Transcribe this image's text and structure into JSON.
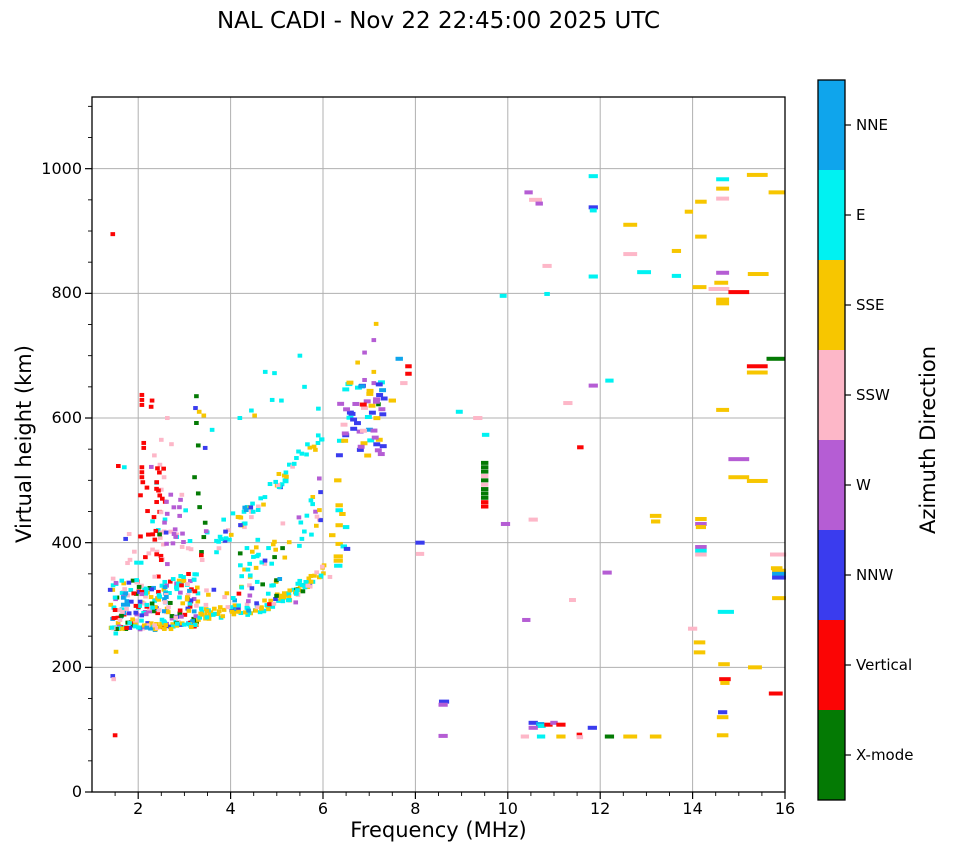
{
  "title": "NAL CADI - Nov 22 22:45:00 2025 UTC",
  "chart_data": {
    "type": "scatter",
    "title": "NAL CADI - Nov 22 22:45:00 2025 UTC",
    "xlabel": "Frequency (MHz)",
    "ylabel": "Virtual height (km)",
    "xlim": [
      1,
      16
    ],
    "ylim": [
      0,
      1115
    ],
    "xticks": [
      2,
      4,
      6,
      8,
      10,
      12,
      14,
      16
    ],
    "yticks": [
      0,
      200,
      400,
      600,
      800,
      1000
    ],
    "xticks_minor_step": 0.5,
    "yticks_minor_step": 50,
    "grid": true,
    "grid_color": "#b0b0b0",
    "frame_color": "#000000",
    "colorbar": {
      "label": "Azimuth Direction",
      "entries": [
        {
          "label": "NNE",
          "color": "#0fa5ec"
        },
        {
          "label": "E",
          "color": "#00f2f2"
        },
        {
          "label": "SSE",
          "color": "#f7c600"
        },
        {
          "label": "SSW",
          "color": "#fdb7c8"
        },
        {
          "label": "W",
          "color": "#b55dd4"
        },
        {
          "label": "NNW",
          "color": "#3a3cee"
        },
        {
          "label": "Vertical",
          "color": "#fb0505"
        },
        {
          "label": "X-mode",
          "color": "#047a04"
        }
      ]
    },
    "color_key": [
      "NNE",
      "E",
      "SSE",
      "SSW",
      "W",
      "NNW",
      "Vertical",
      "X-mode"
    ],
    "points_format": "[freq_MHz, height_km, color_index, dash_width_MHz?]",
    "points": [
      [
        1.45,
        895,
        6
      ],
      [
        1.45,
        186,
        5
      ],
      [
        1.47,
        181,
        3
      ],
      [
        1.5,
        91,
        6
      ],
      [
        1.52,
        225,
        2
      ],
      [
        1.57,
        523,
        6
      ],
      [
        1.7,
        521,
        1
      ],
      [
        2.08,
        637,
        6
      ],
      [
        2.08,
        629,
        6
      ],
      [
        2.08,
        621,
        6
      ],
      [
        2.3,
        628,
        6
      ],
      [
        2.28,
        618,
        6
      ],
      [
        2.12,
        560,
        6
      ],
      [
        2.12,
        552,
        6
      ],
      [
        2.08,
        521,
        6
      ],
      [
        2.08,
        513,
        6
      ],
      [
        2.08,
        505,
        6
      ],
      [
        2.1,
        497,
        6
      ],
      [
        2.05,
        476,
        6
      ],
      [
        2.05,
        410,
        6
      ],
      [
        2.63,
        600,
        3
      ],
      [
        2.5,
        565,
        3
      ],
      [
        2.47,
        525,
        3
      ],
      [
        2.56,
        505,
        3
      ],
      [
        2.4,
        496,
        3
      ],
      [
        2.5,
        485,
        3
      ],
      [
        2.35,
        540,
        3
      ],
      [
        2.72,
        558,
        3
      ],
      [
        3.26,
        635,
        7
      ],
      [
        3.26,
        592,
        7
      ],
      [
        3.3,
        556,
        7
      ],
      [
        3.22,
        505,
        7
      ],
      [
        3.3,
        479,
        7
      ],
      [
        3.33,
        457,
        7
      ],
      [
        3.42,
        409,
        7
      ],
      [
        3.37,
        385,
        7
      ],
      [
        3.45,
        432,
        7
      ],
      [
        3.24,
        616,
        5
      ],
      [
        3.45,
        552,
        5
      ],
      [
        3.6,
        581,
        1
      ],
      [
        3.32,
        610,
        2
      ],
      [
        3.42,
        604,
        2
      ],
      [
        5.5,
        700,
        1
      ],
      [
        4.95,
        672,
        1
      ],
      [
        5.6,
        650,
        1
      ],
      [
        4.9,
        629,
        1
      ],
      [
        5.1,
        628,
        1
      ],
      [
        4.45,
        612,
        1
      ],
      [
        4.52,
        604,
        2
      ],
      [
        4.2,
        600,
        1
      ],
      [
        4.75,
        674,
        1
      ],
      [
        5.9,
        615,
        1
      ],
      [
        3.85,
        437,
        1
      ],
      [
        3.95,
        420,
        3
      ],
      [
        4.05,
        447,
        1
      ],
      [
        4.45,
        441,
        3
      ],
      [
        4.3,
        425,
        3
      ],
      [
        4.6,
        458,
        3
      ],
      [
        6.32,
        500,
        2,
        0.16
      ],
      [
        5.92,
        503,
        4
      ],
      [
        5.92,
        437,
        3
      ],
      [
        6.35,
        460,
        2,
        0.16
      ],
      [
        6.35,
        452,
        1,
        0.16
      ],
      [
        6.42,
        446,
        2,
        0.14
      ],
      [
        6.35,
        428,
        2,
        0.16
      ],
      [
        6.5,
        425,
        1,
        0.14
      ],
      [
        6.2,
        412,
        2,
        0.14
      ],
      [
        6.35,
        398,
        2,
        0.16
      ],
      [
        6.45,
        394,
        1,
        0.14
      ],
      [
        6.52,
        390,
        5,
        0.14
      ],
      [
        6.33,
        378,
        2,
        0.2
      ],
      [
        6.33,
        371,
        2,
        0.2
      ],
      [
        6.33,
        363,
        1,
        0.18
      ],
      [
        6.15,
        345,
        3
      ],
      [
        7.15,
        751,
        2
      ],
      [
        7.1,
        725,
        4
      ],
      [
        6.9,
        705,
        4
      ],
      [
        6.75,
        689,
        2
      ],
      [
        7.1,
        674,
        2
      ],
      [
        6.9,
        661,
        4
      ],
      [
        7.75,
        656,
        3,
        0.16
      ],
      [
        7.1,
        656,
        4
      ],
      [
        7.65,
        695,
        0,
        0.16
      ],
      [
        7.5,
        628,
        2,
        0.16
      ],
      [
        7.85,
        683,
        6,
        0.14
      ],
      [
        7.85,
        671,
        6,
        0.14
      ],
      [
        7.2,
        622,
        7
      ],
      [
        8.1,
        400,
        5,
        0.2
      ],
      [
        8.1,
        382,
        3,
        0.18
      ],
      [
        8.62,
        145,
        5,
        0.22
      ],
      [
        8.6,
        140,
        4,
        0.2
      ],
      [
        8.6,
        90,
        4,
        0.2
      ],
      [
        8.95,
        610,
        1,
        0.15
      ],
      [
        9.35,
        600,
        3,
        0.2
      ],
      [
        9.52,
        573,
        1,
        0.16
      ],
      [
        9.5,
        528,
        7,
        0.16
      ],
      [
        9.5,
        521,
        7,
        0.16
      ],
      [
        9.5,
        514,
        7,
        0.16
      ],
      [
        9.5,
        507,
        3,
        0.16
      ],
      [
        9.5,
        500,
        7,
        0.16
      ],
      [
        9.5,
        493,
        3,
        0.16
      ],
      [
        9.5,
        486,
        7,
        0.16
      ],
      [
        9.5,
        479,
        7,
        0.16
      ],
      [
        9.5,
        472,
        7,
        0.16
      ],
      [
        9.5,
        465,
        6,
        0.16
      ],
      [
        9.5,
        458,
        6,
        0.16
      ],
      [
        9.9,
        796,
        1,
        0.15
      ],
      [
        10.85,
        799,
        1,
        0.12
      ],
      [
        10.85,
        844,
        3,
        0.2
      ],
      [
        10.45,
        962,
        4,
        0.18
      ],
      [
        10.6,
        950,
        3,
        0.28
      ],
      [
        10.68,
        944,
        4,
        0.16
      ],
      [
        11.85,
        988,
        1,
        0.2
      ],
      [
        11.85,
        938,
        5,
        0.2
      ],
      [
        11.85,
        933,
        1,
        0.15
      ],
      [
        12.65,
        910,
        2,
        0.3
      ],
      [
        12.65,
        863,
        3,
        0.3
      ],
      [
        13.65,
        868,
        2,
        0.2
      ],
      [
        12.95,
        834,
        1,
        0.3
      ],
      [
        13.65,
        828,
        1,
        0.2
      ],
      [
        11.85,
        827,
        1,
        0.2
      ],
      [
        11.3,
        624,
        3,
        0.2
      ],
      [
        11.85,
        652,
        4,
        0.2
      ],
      [
        12.2,
        660,
        1,
        0.18
      ],
      [
        11.57,
        553,
        6,
        0.14
      ],
      [
        9.95,
        430,
        4,
        0.2
      ],
      [
        10.55,
        437,
        3,
        0.2
      ],
      [
        12.15,
        352,
        4,
        0.2
      ],
      [
        11.4,
        308,
        3,
        0.15
      ],
      [
        10.4,
        276,
        4,
        0.18
      ],
      [
        10.55,
        111,
        5,
        0.2
      ],
      [
        10.7,
        109,
        0,
        0.18
      ],
      [
        10.73,
        106,
        1,
        0.18
      ],
      [
        10.88,
        108,
        6,
        0.18
      ],
      [
        11.0,
        111,
        4,
        0.16
      ],
      [
        11.15,
        108,
        6,
        0.2
      ],
      [
        10.55,
        103,
        4,
        0.2
      ],
      [
        11.83,
        103,
        5,
        0.2
      ],
      [
        10.37,
        89,
        3,
        0.18
      ],
      [
        10.72,
        89,
        1,
        0.18
      ],
      [
        11.15,
        89,
        2,
        0.2
      ],
      [
        11.55,
        92,
        6,
        0.12
      ],
      [
        11.56,
        88,
        3,
        0.14
      ],
      [
        12.2,
        89,
        7,
        0.2
      ],
      [
        12.65,
        89,
        2,
        0.3
      ],
      [
        13.2,
        89,
        2,
        0.25
      ],
      [
        13.2,
        443,
        2,
        0.25
      ],
      [
        13.2,
        434,
        2,
        0.2
      ],
      [
        14.18,
        438,
        2,
        0.25
      ],
      [
        14.18,
        430,
        4,
        0.25
      ],
      [
        14.18,
        425,
        2,
        0.22
      ],
      [
        14.18,
        393,
        4,
        0.25
      ],
      [
        14.18,
        387,
        1,
        0.25
      ],
      [
        14.18,
        381,
        3,
        0.25
      ],
      [
        15.4,
        990,
        2,
        0.45
      ],
      [
        14.65,
        983,
        1,
        0.28
      ],
      [
        14.65,
        968,
        2,
        0.28
      ],
      [
        15.82,
        962,
        2,
        0.35
      ],
      [
        14.65,
        952,
        3,
        0.28
      ],
      [
        14.18,
        947,
        2,
        0.25
      ],
      [
        13.92,
        931,
        2,
        0.18
      ],
      [
        14.18,
        891,
        2,
        0.25
      ],
      [
        14.65,
        833,
        4,
        0.28
      ],
      [
        15.42,
        831,
        2,
        0.45
      ],
      [
        14.62,
        817,
        2,
        0.3
      ],
      [
        14.15,
        810,
        2,
        0.3
      ],
      [
        14.57,
        807,
        3,
        0.45
      ],
      [
        15.0,
        802,
        6,
        0.45
      ],
      [
        14.65,
        790,
        2,
        0.28
      ],
      [
        14.65,
        784,
        2,
        0.28
      ],
      [
        15.8,
        695,
        7,
        0.4
      ],
      [
        15.4,
        683,
        6,
        0.45
      ],
      [
        15.4,
        673,
        2,
        0.45
      ],
      [
        14.65,
        613,
        2,
        0.28
      ],
      [
        15.0,
        534,
        4,
        0.45
      ],
      [
        15.0,
        505,
        2,
        0.45
      ],
      [
        15.4,
        499,
        2,
        0.45
      ],
      [
        15.85,
        381,
        3,
        0.35
      ],
      [
        15.82,
        359,
        2,
        0.25
      ],
      [
        15.87,
        355,
        2,
        0.3
      ],
      [
        15.87,
        350,
        0,
        0.3
      ],
      [
        15.87,
        344,
        5,
        0.3
      ],
      [
        15.87,
        311,
        2,
        0.3
      ],
      [
        14.72,
        289,
        1,
        0.35
      ],
      [
        14.0,
        262,
        3,
        0.2
      ],
      [
        14.15,
        240,
        2,
        0.25
      ],
      [
        14.15,
        224,
        2,
        0.25
      ],
      [
        14.68,
        205,
        2,
        0.25
      ],
      [
        15.35,
        200,
        2,
        0.3
      ],
      [
        14.7,
        181,
        6,
        0.25
      ],
      [
        14.7,
        175,
        2,
        0.2
      ],
      [
        15.8,
        158,
        6,
        0.3
      ],
      [
        14.65,
        128,
        5,
        0.2
      ],
      [
        14.65,
        120,
        2,
        0.25
      ],
      [
        14.65,
        91,
        2,
        0.25
      ]
    ],
    "clusters_format": "dense echo regions; weights ordered as color_key",
    "clusters": [
      {
        "name": "E-region-blob-core",
        "seed": 1,
        "count": 230,
        "f_range": [
          1.38,
          3.3
        ],
        "f_ref": 1.4,
        "h_base": 300,
        "h_slope": 5,
        "h_spread": 85,
        "weights": [
          0.08,
          0.26,
          0.15,
          0.12,
          0.08,
          0.11,
          0.13,
          0.07
        ]
      },
      {
        "name": "blob-bottom-edge",
        "seed": 2,
        "count": 42,
        "f_range": [
          1.4,
          3.25
        ],
        "f_ref": 1.4,
        "h_base": 258,
        "h_slope": 7,
        "h_spread": 12,
        "weights": [
          0.08,
          0.25,
          0.5,
          0.09,
          0,
          0.04,
          0.02,
          0.02
        ]
      },
      {
        "name": "F-trace-arc",
        "seed": 3,
        "count": 115,
        "f_range": [
          3.3,
          6.05
        ],
        "f_ref": 3.3,
        "h_base": 285,
        "h_slope": 7,
        "h_curve": {
          "x0": 4.6,
          "k": 30,
          "pow": 1.5
        },
        "h_spread": 18,
        "weights": [
          0.05,
          0.38,
          0.4,
          0.07,
          0,
          0.06,
          0,
          0.04
        ]
      },
      {
        "name": "arc-upper-fringe",
        "seed": 4,
        "count": 40,
        "f_range": [
          3.3,
          5.6
        ],
        "f_ref": 3.3,
        "h_base": 300,
        "h_slope": 12,
        "h_spread": 45,
        "weights": [
          0.05,
          0.35,
          0.2,
          0.15,
          0.05,
          0.1,
          0.02,
          0.08
        ]
      },
      {
        "name": "oblique-diagonal-trace",
        "seed": 5,
        "count": 62,
        "f_range": [
          3.65,
          6.0
        ],
        "f_ref": 3.7,
        "h_base": 395,
        "h_slope": 78,
        "h_spread": 28,
        "weights": [
          0.06,
          0.62,
          0.16,
          0.08,
          0,
          0.08,
          0,
          0
        ]
      },
      {
        "name": "between-band",
        "seed": 6,
        "count": 46,
        "f_range": [
          4.2,
          6.05
        ],
        "f_ref": 4.2,
        "h_base": 355,
        "h_slope": 55,
        "h_spread": 65,
        "weights": [
          0.02,
          0.5,
          0.22,
          0.12,
          0.04,
          0.06,
          0,
          0.04
        ]
      },
      {
        "name": "vertical-red-zone",
        "seed": 7,
        "count": 30,
        "f_range": [
          2.15,
          2.6
        ],
        "f_ref": 2.15,
        "h_base": 446,
        "h_slope": 0,
        "h_spread": 158,
        "weights": [
          0,
          0.06,
          0,
          0.14,
          0.08,
          0,
          0.72,
          0
        ]
      },
      {
        "name": "west-purple-zone",
        "seed": 8,
        "count": 18,
        "f_range": [
          2.55,
          3.05
        ],
        "f_ref": 2.55,
        "h_base": 436,
        "h_slope": 0,
        "h_spread": 82,
        "weights": [
          0,
          0.1,
          0,
          0.18,
          0.6,
          0.12,
          0,
          0
        ]
      },
      {
        "name": "cusp-column",
        "seed": 9,
        "count": 54,
        "f_range": [
          6.28,
          7.35
        ],
        "f_ref": 6.28,
        "h_base": 602,
        "h_slope": 0,
        "h_spread": 125,
        "point_w": 0.15,
        "weights": [
          0.05,
          0.18,
          0.3,
          0.04,
          0.2,
          0.2,
          0.02,
          0.01
        ]
      },
      {
        "name": "blob-top-sparse",
        "seed": 10,
        "count": 26,
        "f_range": [
          1.7,
          3.5
        ],
        "f_ref": 1.7,
        "h_base": 392,
        "h_slope": 0,
        "h_spread": 58,
        "weights": [
          0,
          0.18,
          0.02,
          0.3,
          0.12,
          0.1,
          0.18,
          0.1
        ]
      }
    ]
  },
  "layout_values": {
    "x_tick_labels": [
      "2",
      "4",
      "6",
      "8",
      "10",
      "12",
      "14",
      "16"
    ],
    "y_tick_labels": [
      "0",
      "200",
      "400",
      "600",
      "800",
      "1000"
    ]
  }
}
